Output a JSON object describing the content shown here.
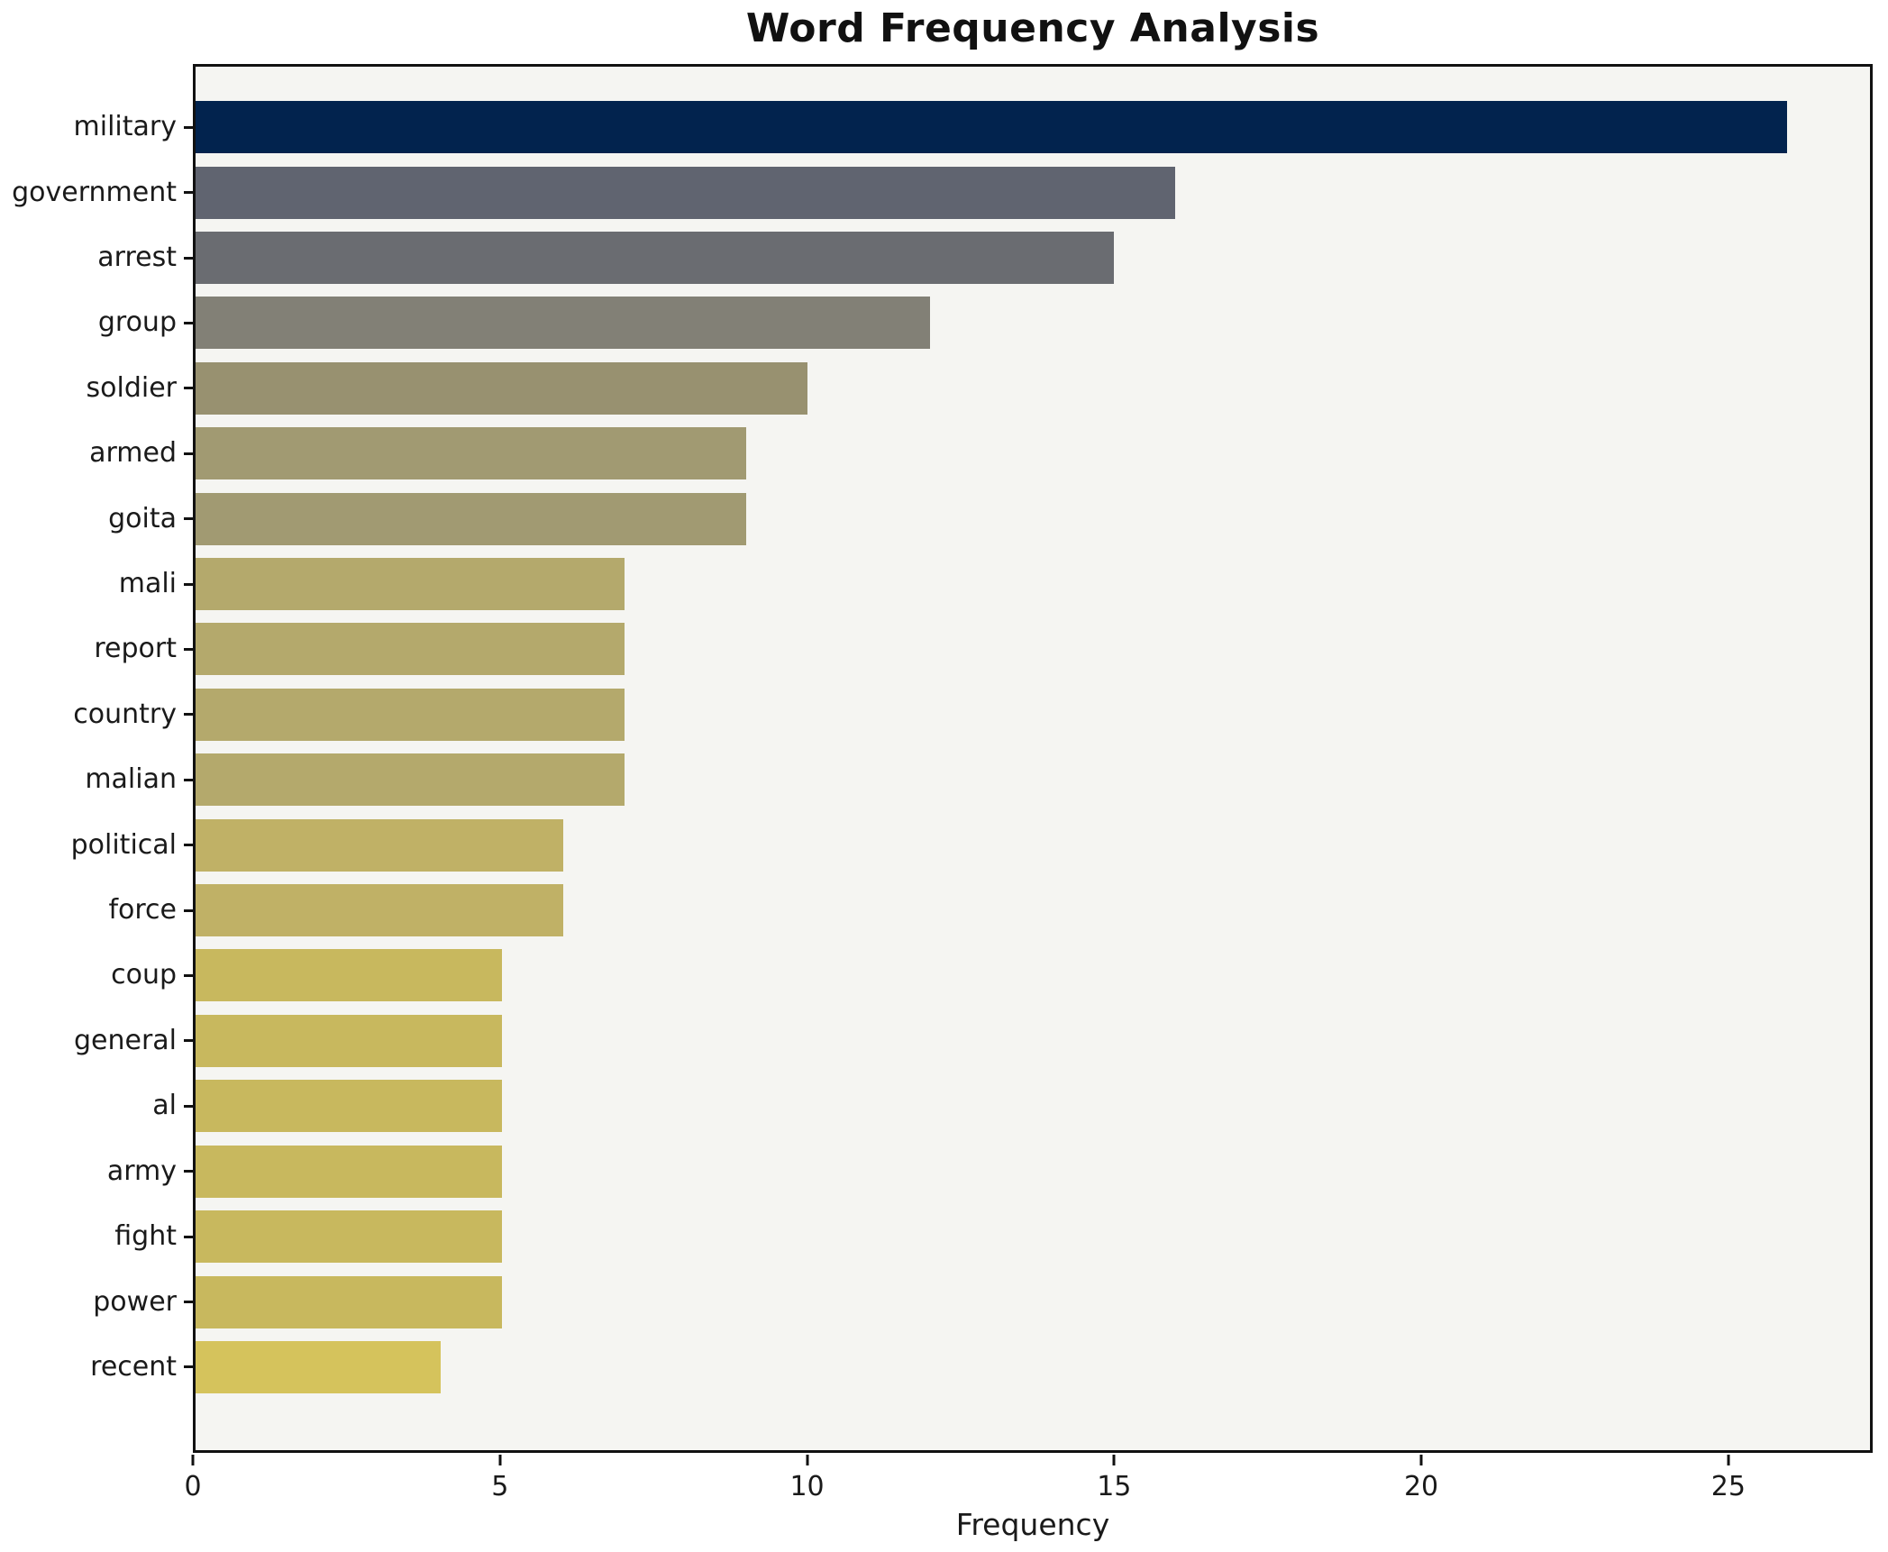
{
  "chart_data": {
    "type": "bar",
    "orientation": "horizontal",
    "title": "Word Frequency Analysis",
    "xlabel": "Frequency",
    "ylabel": "",
    "categories": [
      "military",
      "government",
      "arrest",
      "group",
      "soldier",
      "armed",
      "goita",
      "mali",
      "report",
      "country",
      "malian",
      "political",
      "force",
      "coup",
      "general",
      "al",
      "army",
      "fight",
      "power",
      "recent"
    ],
    "values": [
      26,
      16,
      15,
      12,
      10,
      9,
      9,
      7,
      7,
      7,
      7,
      6,
      6,
      5,
      5,
      5,
      5,
      5,
      5,
      4
    ],
    "bar_colors": [
      "#02234e",
      "#606470",
      "#6a6c71",
      "#828076",
      "#989170",
      "#a19a72",
      "#a19a72",
      "#b4a96c",
      "#b4a96c",
      "#b4a96c",
      "#b4a96c",
      "#c0b166",
      "#c0b166",
      "#c8b85e",
      "#c8b85e",
      "#c8b85e",
      "#c8b85e",
      "#c8b85e",
      "#c8b85e",
      "#d5c35c"
    ],
    "xlim": [
      0,
      27.35
    ],
    "x_ticks": [
      0,
      5,
      10,
      15,
      20,
      25
    ],
    "grid": false,
    "legend": null,
    "plot_background": "#f5f5f2",
    "figure_background": "#ffffff",
    "spine_color": "#111111"
  }
}
